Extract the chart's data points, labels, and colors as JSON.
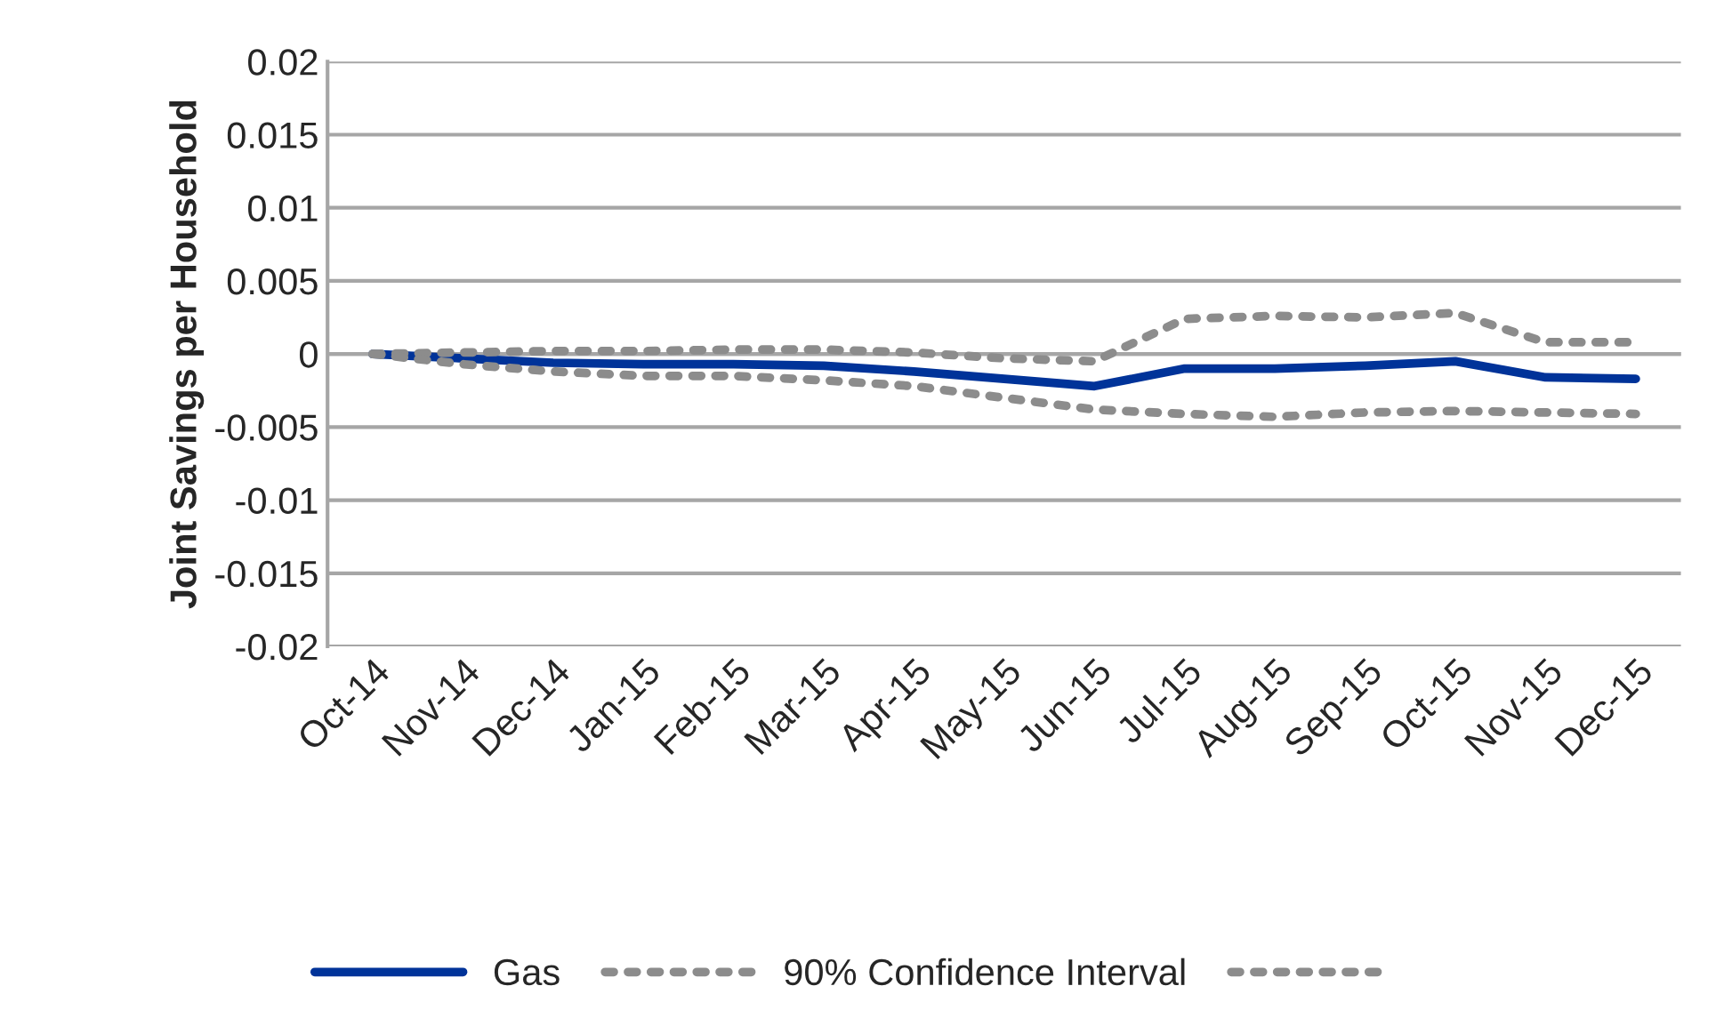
{
  "chart_data": {
    "type": "line",
    "ylabel": "Joint Savings per Household",
    "categories": [
      "Oct-14",
      "Nov-14",
      "Dec-14",
      "Jan-15",
      "Feb-15",
      "Mar-15",
      "Apr-15",
      "May-15",
      "Jun-15",
      "Jul-15",
      "Aug-15",
      "Sep-15",
      "Oct-15",
      "Nov-15",
      "Dec-15"
    ],
    "series": [
      {
        "name": "Gas",
        "color": "#003399",
        "line_style": "solid",
        "values": [
          0,
          -0.0003,
          -0.0006,
          -0.0007,
          -0.0007,
          -0.0008,
          -0.0012,
          -0.0017,
          -0.0022,
          -0.001,
          -0.001,
          -0.0008,
          -0.0005,
          -0.0016,
          -0.0017
        ]
      },
      {
        "name": "90% Confidence Interval",
        "color": "#8c8c8c",
        "line_style": "dotted",
        "values": [
          0,
          0.0001,
          0.0002,
          0.0002,
          0.0003,
          0.0003,
          0.0001,
          -0.0003,
          -0.0005,
          0.0024,
          0.0026,
          0.0025,
          0.0028,
          0.0008,
          0.0008
        ]
      },
      {
        "color": "#8c8c8c",
        "line_style": "dotted",
        "values": [
          0,
          -0.0007,
          -0.0012,
          -0.0015,
          -0.0015,
          -0.0018,
          -0.0022,
          -0.003,
          -0.0038,
          -0.0041,
          -0.0043,
          -0.004,
          -0.0039,
          -0.004,
          -0.0041
        ]
      }
    ],
    "ylim": [
      -0.02,
      0.02
    ],
    "yticks": [
      {
        "value": -0.02,
        "label": "-0.02"
      },
      {
        "value": -0.015,
        "label": "-0.015"
      },
      {
        "value": -0.01,
        "label": "-0.01"
      },
      {
        "value": -0.005,
        "label": "-0.005"
      },
      0,
      {
        "value": 0.005,
        "label": "0.005"
      },
      {
        "value": 0.01,
        "label": "0.01"
      },
      {
        "value": 0.015,
        "label": "0.015"
      },
      {
        "value": 0.02,
        "label": "0.02"
      }
    ],
    "grid": "y",
    "legend": "bottom"
  }
}
